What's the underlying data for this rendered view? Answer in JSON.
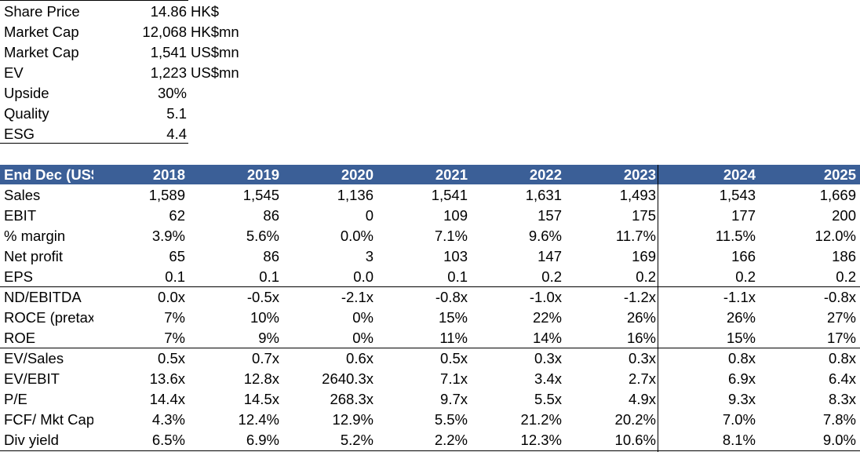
{
  "summary": [
    {
      "label": "Share Price",
      "value": "14.86",
      "unit": "HK$"
    },
    {
      "label": "Market Cap",
      "value": "12,068",
      "unit": "HK$mn"
    },
    {
      "label": "Market Cap",
      "value": "1,541",
      "unit": "US$mn"
    },
    {
      "label": "EV",
      "value": "1,223",
      "unit": "US$mn"
    },
    {
      "label": "Upside",
      "value": "30%",
      "unit": ""
    },
    {
      "label": "Quality",
      "value": "5.1",
      "unit": ""
    },
    {
      "label": "ESG",
      "value": "4.4",
      "unit": ""
    }
  ],
  "table": {
    "header_label": "End Dec (US$mn)",
    "years": [
      "2018",
      "2019",
      "2020",
      "2021",
      "2022",
      "2023",
      "2024",
      "2025"
    ],
    "rows": [
      {
        "label": "Sales",
        "values": [
          "1,589",
          "1,545",
          "1,136",
          "1,541",
          "1,631",
          "1,493",
          "1,543",
          "1,669"
        ]
      },
      {
        "label": "EBIT",
        "values": [
          "62",
          "86",
          "0",
          "109",
          "157",
          "175",
          "177",
          "200"
        ]
      },
      {
        "label": "% margin",
        "values": [
          "3.9%",
          "5.6%",
          "0.0%",
          "7.1%",
          "9.6%",
          "11.7%",
          "11.5%",
          "12.0%"
        ]
      },
      {
        "label": "Net profit",
        "values": [
          "65",
          "86",
          "3",
          "103",
          "147",
          "169",
          "166",
          "186"
        ]
      },
      {
        "label": "EPS",
        "values": [
          "0.1",
          "0.1",
          "0.0",
          "0.1",
          "0.2",
          "0.2",
          "0.2",
          "0.2"
        ]
      },
      {
        "label": "ND/EBITDA",
        "values": [
          "0.0x",
          "-0.5x",
          "-2.1x",
          "-0.8x",
          "-1.0x",
          "-1.2x",
          "-1.1x",
          "-0.8x"
        ]
      },
      {
        "label": "ROCE (pretax)",
        "values": [
          "7%",
          "10%",
          "0%",
          "15%",
          "22%",
          "26%",
          "26%",
          "27%"
        ]
      },
      {
        "label": "ROE",
        "values": [
          "7%",
          "9%",
          "0%",
          "11%",
          "14%",
          "16%",
          "15%",
          "17%"
        ]
      },
      {
        "label": "EV/Sales",
        "values": [
          "0.5x",
          "0.7x",
          "0.6x",
          "0.5x",
          "0.3x",
          "0.3x",
          "0.8x",
          "0.8x"
        ]
      },
      {
        "label": "EV/EBIT",
        "values": [
          "13.6x",
          "12.8x",
          "2640.3x",
          "7.1x",
          "3.4x",
          "2.7x",
          "6.9x",
          "6.4x"
        ]
      },
      {
        "label": "P/E",
        "values": [
          "14.4x",
          "14.5x",
          "268.3x",
          "9.7x",
          "5.5x",
          "4.9x",
          "9.3x",
          "8.3x"
        ]
      },
      {
        "label": "FCF/ Mkt Cap",
        "values": [
          "4.3%",
          "12.4%",
          "12.9%",
          "5.5%",
          "21.2%",
          "20.2%",
          "7.0%",
          "7.8%"
        ]
      },
      {
        "label": "Div yield",
        "values": [
          "6.5%",
          "6.9%",
          "5.2%",
          "2.2%",
          "12.3%",
          "10.6%",
          "8.1%",
          "9.0%"
        ]
      }
    ]
  },
  "colors": {
    "header_bg": "#3b5f97",
    "header_text": "#ffffff"
  }
}
